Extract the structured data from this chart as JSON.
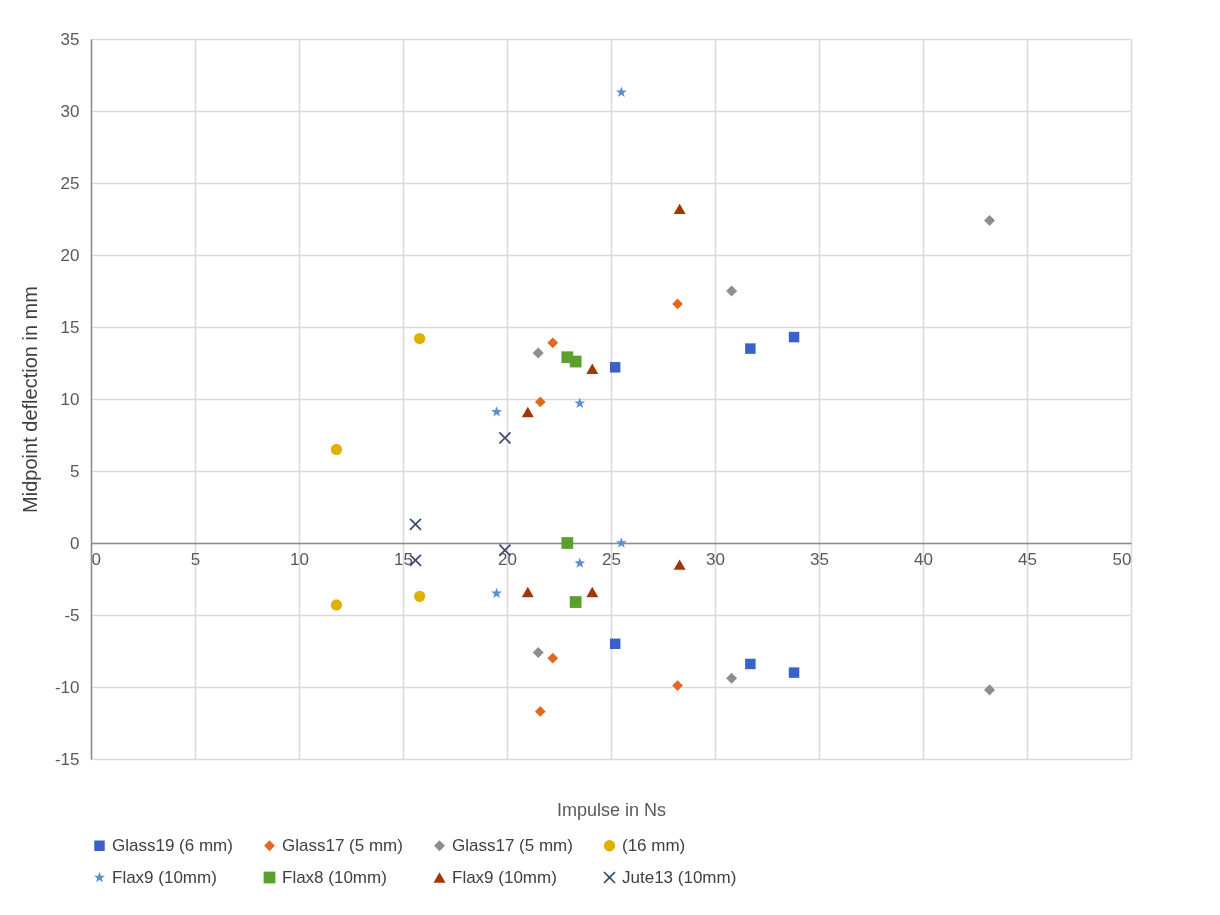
{
  "chart_data": {
    "type": "scatter",
    "xlabel": "Impulse in Ns",
    "ylabel": "Midpoint deflection in mm",
    "xlim": [
      0,
      50
    ],
    "xticks": [
      0,
      5,
      10,
      15,
      20,
      25,
      30,
      35,
      40,
      45,
      50
    ],
    "ylim": [
      -15,
      35
    ],
    "yticks": [
      -15,
      -10,
      -5,
      0,
      5,
      10,
      15,
      20,
      25,
      30,
      35
    ],
    "grid": true,
    "legend": "bottom",
    "series": [
      {
        "name": "Glass19 (6 mm)",
        "color": "#3a62c6",
        "marker": "square",
        "x": [
          25.2,
          31.7,
          33.8,
          25.2,
          31.7,
          33.8
        ],
        "values": [
          12.2,
          13.5,
          14.3,
          -7.0,
          -8.4,
          -9.0
        ]
      },
      {
        "name": "Glass17 (5 mm)",
        "color": "#e2691f",
        "marker": "diamond",
        "x": [
          22.2,
          21.6,
          28.2,
          22.2,
          21.6,
          28.2
        ],
        "values": [
          13.9,
          9.8,
          16.6,
          -8.0,
          -11.7,
          -9.9
        ]
      },
      {
        "name": "Glass17 (5 mm)",
        "color": "#8e8e8e",
        "marker": "diamond",
        "x": [
          21.5,
          30.8,
          43.2,
          21.5,
          30.8,
          43.2
        ],
        "values": [
          13.2,
          17.5,
          22.4,
          -7.6,
          -9.4,
          -10.2
        ]
      },
      {
        "name": "(16 mm)",
        "color": "#e0b000",
        "marker": "circle",
        "x": [
          15.8,
          11.8,
          15.8,
          11.8
        ],
        "values": [
          14.2,
          6.5,
          -3.7,
          -4.3
        ]
      },
      {
        "name": "Flax9 (10mm)",
        "color": "#5b8fd0",
        "marker": "star",
        "x": [
          19.5,
          23.5,
          25.5,
          19.5,
          23.5,
          25.5
        ],
        "values": [
          9.1,
          9.7,
          31.3,
          -3.5,
          -1.4,
          0
        ]
      },
      {
        "name": "Flax8 (10mm)",
        "color": "#5aa02c",
        "marker": "square",
        "x": [
          22.9,
          23.3,
          22.9,
          23.3
        ],
        "values": [
          12.9,
          12.6,
          0,
          -4.1
        ]
      },
      {
        "name": "Flax9 (10mm)",
        "color": "#a0360a",
        "marker": "triangle",
        "x": [
          21.0,
          24.1,
          28.3,
          21.0,
          24.1,
          28.3
        ],
        "values": [
          9.1,
          12.1,
          23.2,
          -3.4,
          -3.4,
          -1.5
        ]
      },
      {
        "name": "Jute13 (10mm)",
        "color": "#3b4a70",
        "marker": "cross",
        "x": [
          15.6,
          19.9,
          15.6,
          19.9
        ],
        "values": [
          1.3,
          7.3,
          -1.2,
          -0.5
        ]
      }
    ]
  }
}
